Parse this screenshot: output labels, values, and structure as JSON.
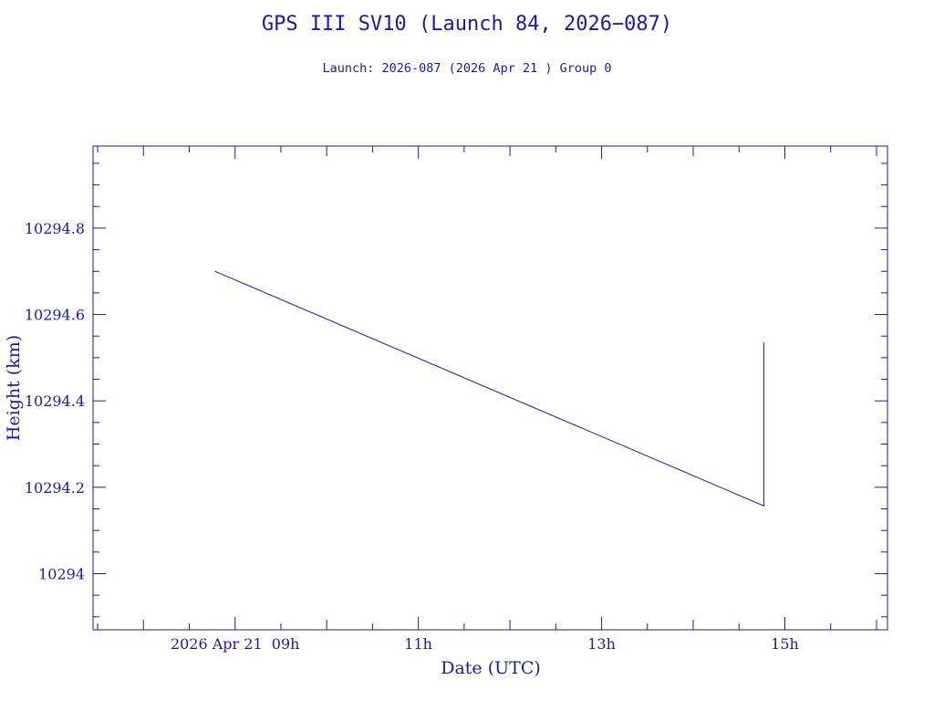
{
  "chart_data": {
    "type": "line",
    "title": "GPS III SV10 (Launch 84, 2026−087)",
    "subtitle": "Launch: 2026-087  (2026 Apr 21 )  Group 0",
    "xlabel": "Date (UTC)",
    "ylabel": "Height (km)",
    "x_tick_labels": [
      "2026 Apr 21  09h",
      "11h",
      "13h",
      "15h"
    ],
    "x_tick_hours": [
      9,
      11,
      13,
      15
    ],
    "y_tick_labels": [
      "10294",
      "10294.2",
      "10294.4",
      "10294.6",
      "10294.8"
    ],
    "y_tick_values": [
      10294,
      10294.2,
      10294.4,
      10294.6,
      10294.8
    ],
    "xlim_hours": [
      7.45,
      16.12
    ],
    "ylim": [
      10293.87,
      10294.99
    ],
    "grid": false,
    "color": "#1a1aa6",
    "series": [
      {
        "x_hours": [
          8.78,
          14.77,
          14.77
        ],
        "y": [
          10294.7,
          10294.157,
          10294.535
        ]
      }
    ]
  }
}
